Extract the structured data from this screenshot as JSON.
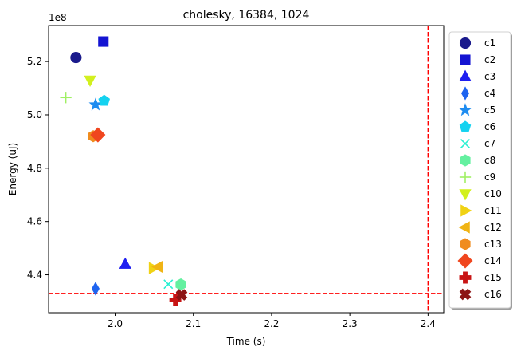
{
  "chart_data": {
    "type": "scatter",
    "title": "cholesky, 16384, 1024",
    "xlabel": "Time (s)",
    "ylabel": "Energy (uJ)",
    "y_offset_label": "1e8",
    "xlim": [
      1.915,
      2.42
    ],
    "ylim": [
      425800000,
      533500000
    ],
    "xticks": [
      2.0,
      2.1,
      2.2,
      2.3,
      2.4
    ],
    "xtick_labels": [
      "2.0",
      "2.1",
      "2.2",
      "2.3",
      "2.4"
    ],
    "yticks": [
      440000000,
      460000000,
      480000000,
      500000000,
      520000000
    ],
    "ytick_labels": [
      "4.4",
      "4.6",
      "4.8",
      "5.0",
      "5.2"
    ],
    "reference_lines": {
      "x": 2.4,
      "y": 433000000,
      "color": "#ff0000",
      "style": "dashed"
    },
    "legend_position": "outside right",
    "series": [
      {
        "name": "c1",
        "marker": "circle",
        "color": "#1a1a8c",
        "x": 1.95,
        "y": 521500000
      },
      {
        "name": "c2",
        "marker": "square",
        "color": "#1414d2",
        "x": 1.985,
        "y": 527500000
      },
      {
        "name": "c3",
        "marker": "triangle-up",
        "color": "#1e1ef0",
        "x": 2.013,
        "y": 444000000
      },
      {
        "name": "c4",
        "marker": "thin-diamond",
        "color": "#1e64f0",
        "x": 1.975,
        "y": 434800000
      },
      {
        "name": "c5",
        "marker": "star",
        "color": "#1e8cf0",
        "x": 1.975,
        "y": 503800000
      },
      {
        "name": "c6",
        "marker": "pentagon",
        "color": "#14d2f0",
        "x": 1.986,
        "y": 505300000
      },
      {
        "name": "c7",
        "marker": "x",
        "color": "#28f0d2",
        "x": 2.068,
        "y": 436500000
      },
      {
        "name": "c8",
        "marker": "hexagon",
        "color": "#64f0a0",
        "x": 2.084,
        "y": 436400000
      },
      {
        "name": "c9",
        "marker": "plus",
        "color": "#a0f064",
        "x": 1.937,
        "y": 506500000
      },
      {
        "name": "c10",
        "marker": "triangle-down",
        "color": "#d2f01e",
        "x": 1.968,
        "y": 513000000
      },
      {
        "name": "c11",
        "marker": "triangle-right",
        "color": "#f0d214",
        "x": 2.049,
        "y": 442500000
      },
      {
        "name": "c12",
        "marker": "triangle-left",
        "color": "#f0b414",
        "x": 2.055,
        "y": 443000000
      },
      {
        "name": "c13",
        "marker": "hexagon",
        "color": "#f08c1e",
        "x": 1.972,
        "y": 492000000
      },
      {
        "name": "c14",
        "marker": "diamond",
        "color": "#f0461e",
        "x": 1.978,
        "y": 492500000
      },
      {
        "name": "c15",
        "marker": "plus-filled",
        "color": "#c81414",
        "x": 2.077,
        "y": 430600000
      },
      {
        "name": "c16",
        "marker": "x-filled",
        "color": "#8c1414",
        "x": 2.085,
        "y": 432500000
      }
    ]
  }
}
